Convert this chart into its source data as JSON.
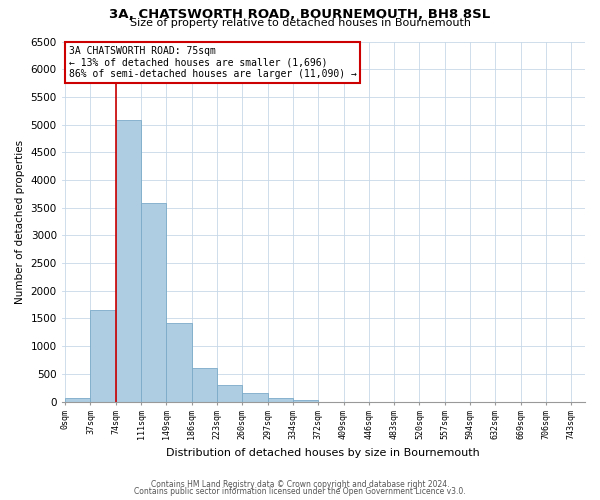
{
  "title": "3A, CHATSWORTH ROAD, BOURNEMOUTH, BH8 8SL",
  "subtitle": "Size of property relative to detached houses in Bournemouth",
  "xlabel": "Distribution of detached houses by size in Bournemouth",
  "ylabel": "Number of detached properties",
  "bar_values": [
    70,
    1650,
    5080,
    3580,
    1420,
    610,
    305,
    150,
    65,
    30,
    0,
    0,
    0,
    0,
    0,
    0,
    0,
    0,
    0
  ],
  "bin_labels": [
    "0sqm",
    "37sqm",
    "74sqm",
    "111sqm",
    "149sqm",
    "186sqm",
    "223sqm",
    "260sqm",
    "297sqm",
    "334sqm",
    "372sqm",
    "409sqm",
    "446sqm",
    "483sqm",
    "520sqm",
    "557sqm",
    "594sqm",
    "632sqm",
    "669sqm",
    "706sqm",
    "743sqm"
  ],
  "bar_color": "#aecde3",
  "bar_edge_color": "#7aaac8",
  "property_line_x": 74,
  "property_line_color": "#cc0000",
  "annotation_line1": "3A CHATSWORTH ROAD: 75sqm",
  "annotation_line2": "← 13% of detached houses are smaller (1,696)",
  "annotation_line3": "86% of semi-detached houses are larger (11,090) →",
  "ylim": [
    0,
    6500
  ],
  "yticks": [
    0,
    500,
    1000,
    1500,
    2000,
    2500,
    3000,
    3500,
    4000,
    4500,
    5000,
    5500,
    6000,
    6500
  ],
  "footer_line1": "Contains HM Land Registry data © Crown copyright and database right 2024.",
  "footer_line2": "Contains public sector information licensed under the Open Government Licence v3.0.",
  "background_color": "#ffffff",
  "bin_width": 37,
  "n_bins": 19
}
